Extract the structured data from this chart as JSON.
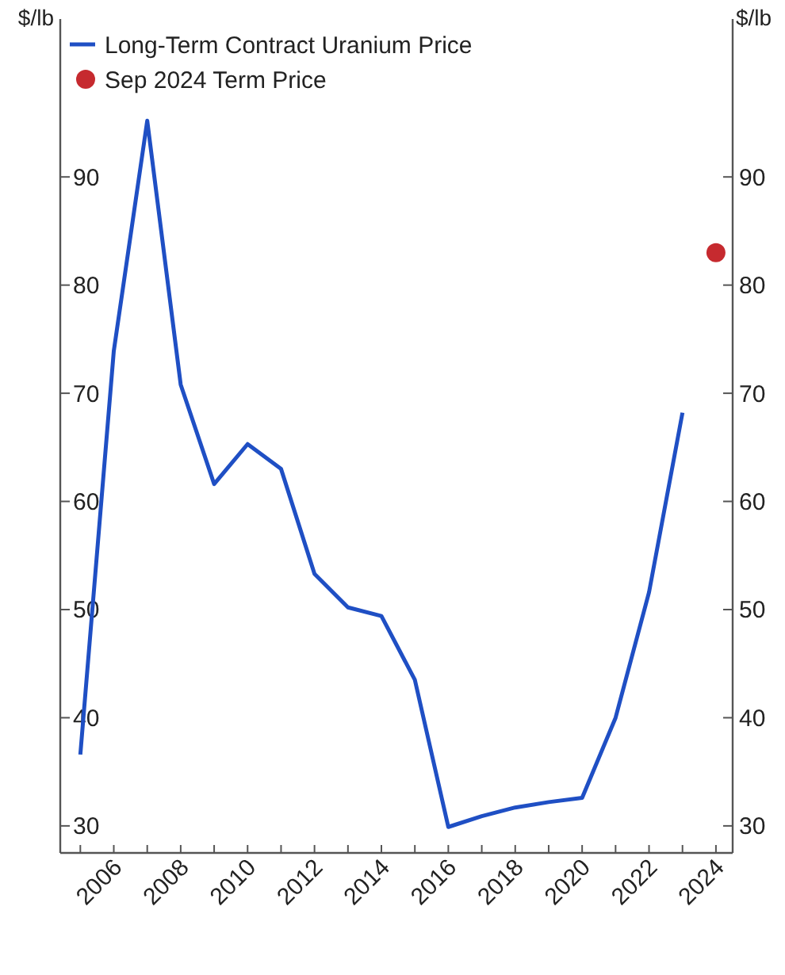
{
  "chart_data": {
    "type": "line",
    "ylabel": "$/lb",
    "y2label": "$/lb",
    "x": [
      2005,
      2006,
      2007,
      2008,
      2009,
      2010,
      2011,
      2012,
      2013,
      2014,
      2015,
      2016,
      2017,
      2018,
      2019,
      2020,
      2021,
      2022,
      2023
    ],
    "series": [
      {
        "name": "Long-Term Contract Uranium Price",
        "color": "#1f4fc4",
        "values": [
          36.6,
          73.9,
          95.2,
          70.8,
          61.6,
          65.3,
          63.0,
          53.3,
          50.2,
          49.4,
          43.5,
          29.9,
          30.9,
          31.7,
          32.2,
          32.6,
          40.0,
          51.6,
          68.2
        ]
      },
      {
        "name": "Sep 2024 Term Price",
        "type": "scatter",
        "marker": "circle",
        "color": "#c62a2f",
        "x": [
          2024
        ],
        "values": [
          83.0
        ]
      }
    ],
    "xlim": [
      2004.4,
      2024.5
    ],
    "xticks": [
      {
        "value": 2005,
        "label": null
      },
      2006,
      {
        "value": 2007,
        "label": null
      },
      2008,
      {
        "value": 2009,
        "label": null
      },
      2010,
      {
        "value": 2011,
        "label": null
      },
      2012,
      {
        "value": 2013,
        "label": null
      },
      2014,
      {
        "value": 2015,
        "label": null
      },
      2016,
      {
        "value": 2017,
        "label": null
      },
      2018,
      {
        "value": 2019,
        "label": null
      },
      2020,
      {
        "value": 2021,
        "label": null
      },
      2022,
      {
        "value": 2023,
        "label": null
      },
      2024
    ],
    "ylim": [
      27.5,
      104.6
    ],
    "yticks": [
      30,
      40,
      50,
      60,
      70,
      80,
      90
    ],
    "y2lim": [
      27.5,
      104.6
    ],
    "y2ticks": [
      30,
      40,
      50,
      60,
      70,
      80,
      90
    ],
    "legend": "top left",
    "grid": false
  }
}
